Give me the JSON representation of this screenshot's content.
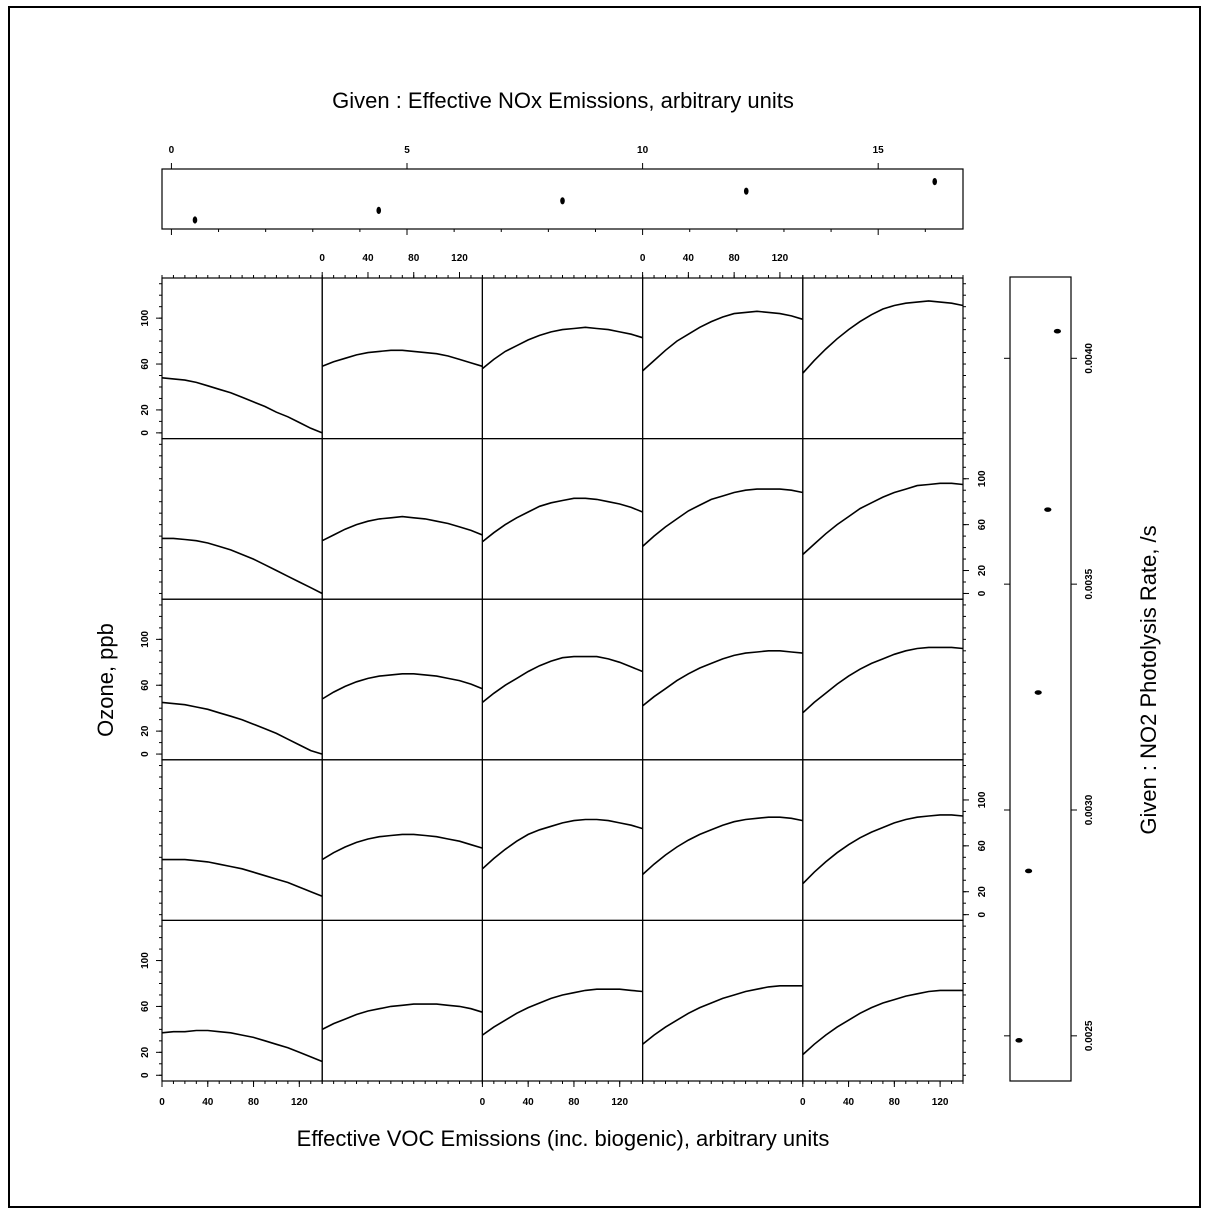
{
  "chart_data": {
    "type": "line",
    "title": "",
    "xlabel": "Effective VOC Emissions (inc. biogenic), arbitrary units",
    "ylabel": "Ozone, ppb",
    "xlim": [
      0,
      140
    ],
    "ylim": [
      -5,
      135
    ],
    "x_ticks": [
      0,
      40,
      80,
      120
    ],
    "y_ticks": [
      0,
      20,
      60,
      100
    ],
    "given_top": {
      "label": "Given :  Effective NOx Emissions, arbitrary units",
      "ticks": [
        0,
        5,
        10,
        15
      ],
      "range": [
        -0.2,
        16.8
      ],
      "values": [
        0.5,
        4.4,
        8.3,
        12.2,
        16.2
      ]
    },
    "given_right": {
      "label": "Given :  NO2 Photolysis Rate, /s",
      "ticks": [
        "0.0025",
        "0.0030",
        "0.0035",
        "0.0040"
      ],
      "range": [
        0.0024,
        0.00418
      ],
      "values": [
        0.00249,
        0.002865,
        0.00326,
        0.003665,
        0.00406
      ]
    },
    "curve_x": [
      0,
      10,
      20,
      30,
      40,
      50,
      60,
      70,
      80,
      90,
      100,
      110,
      120,
      130,
      140
    ],
    "panels": [
      [
        [
          37,
          38,
          38,
          39,
          39,
          38,
          37,
          35,
          33,
          30,
          27,
          24,
          20,
          16,
          12
        ],
        [
          40,
          45,
          49,
          53,
          56,
          58,
          60,
          61,
          62,
          62,
          62,
          61,
          60,
          58,
          55
        ],
        [
          35,
          42,
          48,
          54,
          59,
          63,
          67,
          70,
          72,
          74,
          75,
          75,
          75,
          74,
          73
        ],
        [
          27,
          35,
          42,
          48,
          54,
          59,
          63,
          67,
          70,
          73,
          75,
          77,
          78,
          78,
          78
        ],
        [
          18,
          27,
          35,
          42,
          48,
          54,
          59,
          63,
          66,
          69,
          71,
          73,
          74,
          74,
          74
        ]
      ],
      [
        [
          48,
          48,
          48,
          47,
          46,
          44,
          42,
          40,
          37,
          34,
          31,
          28,
          24,
          20,
          16
        ],
        [
          48,
          54,
          59,
          63,
          66,
          68,
          69,
          70,
          70,
          69,
          68,
          66,
          64,
          61,
          58
        ],
        [
          40,
          49,
          57,
          64,
          70,
          74,
          77,
          80,
          82,
          83,
          83,
          82,
          80,
          78,
          75
        ],
        [
          35,
          44,
          52,
          59,
          65,
          70,
          74,
          78,
          81,
          83,
          84,
          85,
          85,
          84,
          82
        ],
        [
          27,
          37,
          46,
          54,
          61,
          67,
          72,
          76,
          80,
          83,
          85,
          86,
          87,
          87,
          86
        ]
      ],
      [
        [
          45,
          44,
          43,
          41,
          39,
          36,
          33,
          30,
          26,
          22,
          18,
          13,
          8,
          3,
          0
        ],
        [
          48,
          54,
          59,
          63,
          66,
          68,
          69,
          70,
          70,
          69,
          68,
          66,
          64,
          61,
          57
        ],
        [
          45,
          53,
          60,
          66,
          72,
          77,
          81,
          84,
          85,
          85,
          85,
          83,
          80,
          76,
          72
        ],
        [
          42,
          50,
          57,
          64,
          70,
          75,
          79,
          83,
          86,
          88,
          89,
          90,
          90,
          89,
          88
        ],
        [
          36,
          45,
          53,
          61,
          68,
          74,
          79,
          83,
          87,
          90,
          92,
          93,
          93,
          93,
          92
        ]
      ],
      [
        [
          48,
          48,
          47,
          46,
          44,
          41,
          38,
          34,
          30,
          25,
          20,
          15,
          10,
          5,
          0
        ],
        [
          46,
          51,
          56,
          60,
          63,
          65,
          66,
          67,
          66,
          65,
          63,
          61,
          58,
          55,
          51
        ],
        [
          45,
          53,
          60,
          66,
          71,
          76,
          79,
          81,
          83,
          83,
          82,
          80,
          78,
          75,
          71
        ],
        [
          41,
          50,
          58,
          65,
          72,
          77,
          82,
          85,
          88,
          90,
          91,
          91,
          91,
          90,
          88
        ],
        [
          34,
          43,
          52,
          60,
          67,
          74,
          79,
          84,
          88,
          91,
          94,
          95,
          96,
          96,
          95
        ]
      ],
      [
        [
          48,
          47,
          46,
          44,
          41,
          38,
          35,
          31,
          27,
          23,
          18,
          14,
          9,
          4,
          0
        ],
        [
          58,
          62,
          65,
          68,
          70,
          71,
          72,
          72,
          71,
          70,
          69,
          67,
          64,
          61,
          58
        ],
        [
          56,
          64,
          71,
          76,
          81,
          85,
          88,
          90,
          91,
          92,
          91,
          90,
          88,
          86,
          83
        ],
        [
          54,
          63,
          72,
          80,
          86,
          92,
          97,
          101,
          104,
          105,
          106,
          105,
          104,
          102,
          99
        ],
        [
          52,
          63,
          73,
          82,
          90,
          97,
          103,
          108,
          111,
          113,
          114,
          115,
          114,
          113,
          111
        ]
      ]
    ]
  }
}
